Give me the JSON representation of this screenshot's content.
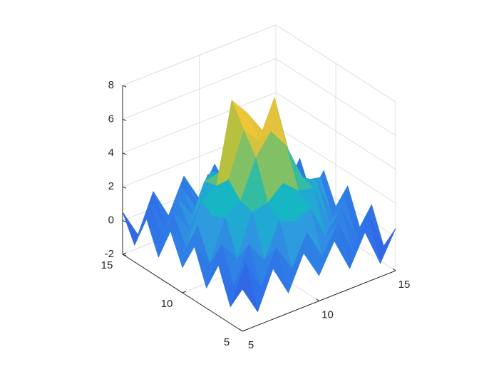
{
  "chart_data": {
    "type": "surface",
    "x": [
      5,
      6,
      7,
      8,
      9,
      10,
      11,
      12,
      13,
      14,
      15
    ],
    "y": [
      5,
      6,
      7,
      8,
      9,
      10,
      11,
      12,
      13,
      14,
      15
    ],
    "z": [
      [
        0.5,
        -1.2,
        1.0,
        -0.8,
        1.2,
        -0.5,
        1.2,
        -0.8,
        1.0,
        -1.2,
        0.5
      ],
      [
        -1.0,
        1.2,
        -0.6,
        1.4,
        -0.2,
        1.6,
        -0.2,
        1.4,
        -0.6,
        1.2,
        -1.0
      ],
      [
        1.0,
        -0.6,
        1.5,
        0.2,
        2.2,
        1.8,
        2.2,
        0.2,
        1.5,
        -0.6,
        1.0
      ],
      [
        -0.8,
        1.4,
        0.2,
        2.6,
        2.8,
        3.6,
        2.8,
        2.6,
        0.2,
        1.4,
        -0.8
      ],
      [
        1.2,
        -0.2,
        2.2,
        2.8,
        5.0,
        6.2,
        5.0,
        2.8,
        2.2,
        -0.2,
        1.2
      ],
      [
        -0.5,
        1.6,
        1.8,
        3.6,
        6.2,
        5.2,
        7.4,
        3.6,
        1.8,
        1.6,
        -0.5
      ],
      [
        1.2,
        -0.2,
        2.2,
        2.8,
        7.5,
        6.4,
        5.0,
        2.8,
        2.2,
        -0.2,
        1.2
      ],
      [
        -0.8,
        1.4,
        0.2,
        2.6,
        2.8,
        3.6,
        2.8,
        2.6,
        0.2,
        1.4,
        -0.8
      ],
      [
        1.0,
        -0.6,
        1.5,
        0.2,
        2.2,
        1.8,
        2.2,
        0.2,
        1.5,
        -0.6,
        1.0
      ],
      [
        -1.0,
        1.2,
        -0.6,
        1.4,
        -0.2,
        1.6,
        -0.2,
        1.4,
        -0.6,
        1.2,
        -1.0
      ],
      [
        0.5,
        -1.2,
        1.0,
        -0.8,
        1.2,
        -0.5,
        1.2,
        -0.8,
        1.0,
        -1.2,
        0.5
      ]
    ],
    "colormap": [
      "#3d3ec9",
      "#2f6fe8",
      "#2f9ae0",
      "#14b5c8",
      "#48c08a",
      "#b8c040",
      "#f0c43a",
      "#f9e51c"
    ],
    "xlim": [
      5,
      15
    ],
    "ylim": [
      5,
      15
    ],
    "zlim": [
      -2,
      8
    ],
    "xticks": [
      5,
      10,
      15
    ],
    "yticks": [
      5,
      10,
      15
    ],
    "zticks": [
      -2,
      0,
      2,
      4,
      6,
      8
    ],
    "grid": true
  }
}
